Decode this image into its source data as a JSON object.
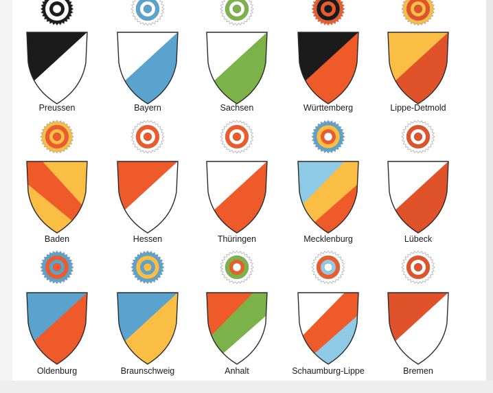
{
  "arms": [
    {
      "name": "Preussen",
      "shield": {
        "top": "#1b1b1b",
        "bottom": "#ffffff",
        "band": null,
        "dir": "ur"
      },
      "cockade": [
        "#1b1b1b",
        "#ffffff",
        "#1b1b1b",
        "#ffffff"
      ]
    },
    {
      "name": "Bayern",
      "shield": {
        "top": "#ffffff",
        "bottom": "#5aa3cf",
        "band": null,
        "dir": "ur"
      },
      "cockade": [
        "#ffffff",
        "#5aa3cf",
        "#ffffff",
        "#5aa3cf"
      ]
    },
    {
      "name": "Sachsen",
      "shield": {
        "top": "#ffffff",
        "bottom": "#7cb24a",
        "band": null,
        "dir": "ur"
      },
      "cockade": [
        "#ffffff",
        "#7cb24a",
        "#ffffff",
        "#7cb24a"
      ]
    },
    {
      "name": "Württemberg",
      "shield": {
        "top": "#1b1b1b",
        "bottom": "#ef5a2a",
        "band": null,
        "dir": "ur"
      },
      "cockade": [
        "#ef5a2a",
        "#1b1b1b",
        "#ef5a2a",
        "#1b1b1b"
      ]
    },
    {
      "name": "Lippe-Detmold",
      "shield": {
        "top": "#fbbe45",
        "bottom": "#e0522a",
        "band": null,
        "dir": "ur"
      },
      "cockade": [
        "#fbbe45",
        "#e0522a",
        "#fbbe45",
        "#e0522a"
      ]
    },
    {
      "name": "Baden",
      "shield": {
        "top": "#fbbe45",
        "bottom": "#fbbe45",
        "band": "#ef5a2a",
        "dir": "dl"
      },
      "cockade": [
        "#fbbe45",
        "#ef5a2a",
        "#fbbe45",
        "#ef5a2a"
      ]
    },
    {
      "name": "Hessen",
      "shield": {
        "top": "#ef5a2a",
        "bottom": "#ffffff",
        "band": null,
        "dir": "ur"
      },
      "cockade": [
        "#ffffff",
        "#ef5a2a",
        "#ffffff",
        "#ef5a2a"
      ]
    },
    {
      "name": "Thüringen",
      "shield": {
        "top": "#ffffff",
        "bottom": "#ef5a2a",
        "band": null,
        "dir": "ur"
      },
      "cockade": [
        "#ffffff",
        "#ef5a2a",
        "#ffffff",
        "#ef5a2a"
      ]
    },
    {
      "name": "Mecklenburg",
      "shield": {
        "top": "#8ec9e6",
        "bottom": "#ef5a2a",
        "band": "#fbbe45",
        "dir": "ur"
      },
      "cockade": [
        "#5aa3cf",
        "#fbbe45",
        "#ef5a2a",
        "#ffffff"
      ]
    },
    {
      "name": "Lübeck",
      "shield": {
        "top": "#ffffff",
        "bottom": "#e0522a",
        "band": null,
        "dir": "ur"
      },
      "cockade": [
        "#ffffff",
        "#e0522a",
        "#ffffff",
        "#e0522a"
      ]
    },
    {
      "name": "Oldenburg",
      "shield": {
        "top": "#5aa3cf",
        "bottom": "#ef5a2a",
        "band": null,
        "dir": "ur"
      },
      "cockade": [
        "#5aa3cf",
        "#ef5a2a",
        "#5aa3cf",
        "#ef5a2a"
      ]
    },
    {
      "name": "Braunschweig",
      "shield": {
        "top": "#5aa3cf",
        "bottom": "#fbbe45",
        "band": null,
        "dir": "ur"
      },
      "cockade": [
        "#5aa3cf",
        "#fbbe45",
        "#5aa3cf",
        "#fbbe45"
      ]
    },
    {
      "name": "Anhalt",
      "shield": {
        "top": "#ef5a2a",
        "bottom": "#ffffff",
        "band": "#7cb24a",
        "dir": "ur"
      },
      "cockade": [
        "#ffffff",
        "#7cb24a",
        "#ef5a2a",
        "#ffffff"
      ]
    },
    {
      "name": "Schaumburg-Lippe",
      "shield": {
        "top": "#ffffff",
        "bottom": "#8ec9e6",
        "band": "#ef5a2a",
        "dir": "ur"
      },
      "cockade": [
        "#ffffff",
        "#ef5a2a",
        "#8ec9e6",
        "#ffffff"
      ]
    },
    {
      "name": "Bremen",
      "shield": {
        "top": "#e0522a",
        "bottom": "#ffffff",
        "band": null,
        "dir": "ur"
      },
      "cockade": [
        "#ffffff",
        "#e0522a",
        "#ffffff",
        "#e0522a"
      ]
    }
  ]
}
